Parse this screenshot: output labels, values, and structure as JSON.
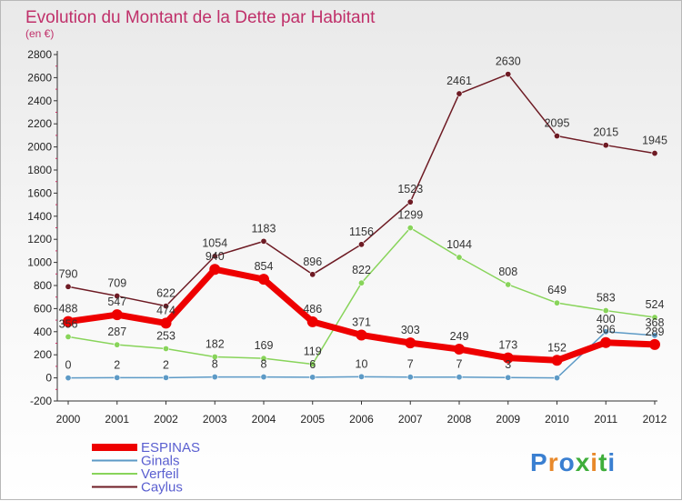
{
  "chart_data": {
    "type": "line",
    "title": "Evolution du Montant de la Dette par Habitant",
    "subtitle": "(en €)",
    "xlabel": "",
    "ylabel": "",
    "x": [
      "2000",
      "2001",
      "2002",
      "2003",
      "2004",
      "2005",
      "2006",
      "2007",
      "2008",
      "2009",
      "2010",
      "2011",
      "2012"
    ],
    "ylim": [
      -200,
      2800
    ],
    "yticks": [
      -200,
      0,
      200,
      400,
      600,
      800,
      1000,
      1200,
      1400,
      1600,
      1800,
      2000,
      2200,
      2400,
      2600,
      2800
    ],
    "grid": false,
    "legend_position": "bottom-left",
    "series": [
      {
        "name": "Caylus",
        "color": "#6e1b24",
        "values": [
          790,
          709,
          622,
          1054,
          1183,
          896,
          1156,
          1523,
          2461,
          2630,
          2095,
          2015,
          1945
        ],
        "labels": [
          "790",
          "709",
          "622",
          "1054",
          "1183",
          "896",
          "1156",
          "1523",
          "2461",
          "2630",
          "2095",
          "2015",
          "1945"
        ]
      },
      {
        "name": "Verfeil",
        "color": "#88d45a",
        "values": [
          356,
          287,
          253,
          182,
          169,
          119,
          822,
          1299,
          1044,
          808,
          649,
          583,
          524
        ],
        "labels": [
          "356",
          "287",
          "253",
          "182",
          "169",
          "119",
          "822",
          "1299",
          "1044",
          "808",
          "649",
          "583",
          "524"
        ]
      },
      {
        "name": "Ginals",
        "color": "#5d9ac6",
        "values": [
          0,
          2,
          2,
          8,
          8,
          6,
          10,
          7,
          7,
          3,
          0,
          400,
          368
        ],
        "labels": [
          "0",
          "2",
          "2",
          "8",
          "8",
          "6",
          "10",
          "7",
          "7",
          "3",
          "",
          "400",
          "368"
        ]
      },
      {
        "name": "ESPINAS",
        "color": "#ee0000",
        "values": [
          488,
          547,
          474,
          940,
          854,
          486,
          371,
          303,
          249,
          173,
          152,
          306,
          289
        ],
        "labels": [
          "488",
          "547",
          "474",
          "940",
          "854",
          "486",
          "371",
          "303",
          "249",
          "173",
          "152",
          "306",
          "289"
        ]
      }
    ],
    "legend": [
      "ESPINAS",
      "Ginals",
      "Verfeil",
      "Caylus"
    ]
  },
  "branding": {
    "logo_text": "Proxiti",
    "logo_colors": [
      "#3a7fd1",
      "#e8892b",
      "#3a7fd1",
      "#3fae3b",
      "#e8892b",
      "#3fae3b",
      "#3a7fd1"
    ]
  }
}
